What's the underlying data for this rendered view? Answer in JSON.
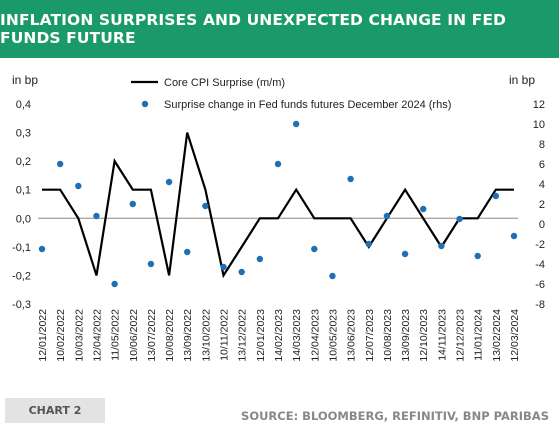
{
  "header": {
    "title": "INFLATION SURPRISES AND UNEXPECTED CHANGE IN FED FUNDS FUTURE"
  },
  "footer": {
    "chart_label": "CHART 2",
    "source": "SOURCE: BLOOMBERG, REFINITIV, BNP PARIBAS"
  },
  "colors": {
    "title_bg": "#1a9a6a",
    "line": "#000000",
    "dots": "#1f6fb5",
    "badge_bg": "#e3e3e3"
  },
  "chart_data": {
    "type": "line",
    "left_axis_label": "in bp",
    "right_axis_label": "in bp",
    "ylim": [
      -0.3,
      0.4
    ],
    "y2lim": [
      -8,
      12
    ],
    "y_ticks": [
      "0,4",
      "0,3",
      "0,2",
      "0,1",
      "0,0",
      "-0,1",
      "-0,2",
      "-0,3"
    ],
    "y2_ticks": [
      "12",
      "10",
      "8",
      "6",
      "4",
      "2",
      "0",
      "-2",
      "-4",
      "-6",
      "-8"
    ],
    "x_ticks": [
      "12/01/2022",
      "10/02/2022",
      "10/03/2022",
      "12/04/2022",
      "11/05/2022",
      "10/06/2022",
      "13/07/2022",
      "10/08/2022",
      "13/09/2022",
      "13/10/2022",
      "10/11/2022",
      "13/12/2022",
      "12/01/2023",
      "14/02/2023",
      "14/03/2023",
      "12/04/2023",
      "10/05/2023",
      "13/06/2023",
      "12/07/2023",
      "10/08/2023",
      "13/09/2023",
      "12/10/2023",
      "14/11/2023",
      "12/12/2023",
      "11/01/2024",
      "13/02/2024",
      "12/03/2024"
    ],
    "grid": false,
    "series": [
      {
        "name": "Core CPI Surprise (m/m)",
        "axis": "left",
        "type": "line",
        "values": [
          0.1,
          0.1,
          0.0,
          -0.2,
          0.2,
          0.1,
          0.1,
          -0.2,
          0.3,
          0.1,
          -0.2,
          -0.1,
          0.0,
          0.0,
          0.1,
          0.0,
          0.0,
          0.0,
          -0.1,
          0.0,
          0.1,
          0.0,
          -0.1,
          0.0,
          0.0,
          0.1,
          0.1
        ]
      },
      {
        "name": "Surprise change in Fed funds futures December 2024 (rhs)",
        "axis": "right",
        "type": "scatter",
        "values": [
          -2.5,
          6.0,
          3.8,
          0.8,
          -6.0,
          2.0,
          -4.0,
          4.2,
          -2.8,
          1.8,
          -4.3,
          -4.8,
          -3.5,
          6.0,
          10.0,
          -2.5,
          -5.2,
          4.5,
          -2.0,
          0.8,
          -3.0,
          1.5,
          -2.2,
          0.5,
          -3.2,
          2.8,
          -1.2
        ]
      }
    ]
  }
}
